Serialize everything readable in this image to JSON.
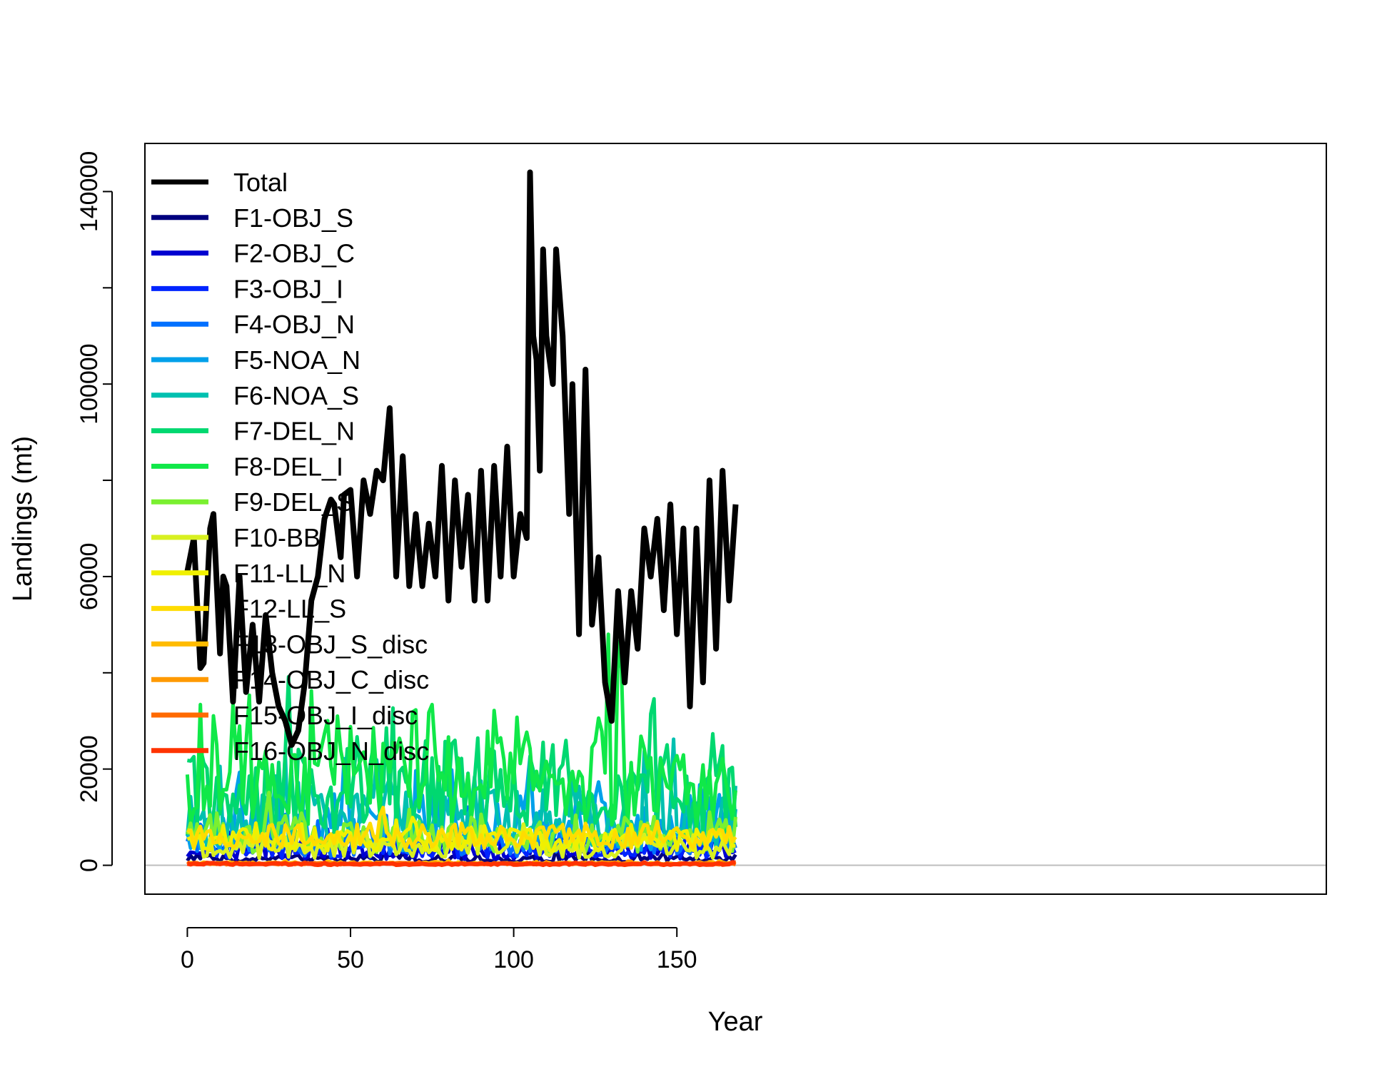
{
  "chart_data": {
    "type": "line",
    "title": "",
    "xlabel": "Year",
    "ylabel": "Landings (mt)",
    "xlim": [
      -13,
      349
    ],
    "ylim": [
      -6000,
      150000
    ],
    "xticks": [
      0,
      50,
      100,
      150
    ],
    "yticks": [
      0,
      20000,
      60000,
      100000,
      140000
    ],
    "xtick_labels": [
      "0",
      "50",
      "100",
      "150"
    ],
    "ytick_labels": [
      "0",
      "20000",
      "60000",
      "100000",
      "140000"
    ],
    "grid": false,
    "reference_line": {
      "y": 0,
      "color": "#bebebe"
    },
    "legend_position": "top-left",
    "series": [
      {
        "name": "Total",
        "color": "#000000",
        "x": [
          0,
          2,
          4,
          5,
          7,
          8,
          10,
          11,
          12,
          14,
          16,
          18,
          20,
          22,
          24,
          26,
          28,
          30,
          32,
          34,
          36,
          38,
          40,
          42,
          44,
          45,
          47,
          48,
          50,
          52,
          54,
          56,
          58,
          60,
          62,
          64,
          66,
          68,
          70,
          72,
          74,
          76,
          78,
          80,
          82,
          84,
          86,
          88,
          90,
          92,
          94,
          96,
          98,
          100,
          102,
          104,
          105,
          106,
          107,
          108,
          109,
          110,
          112,
          113,
          115,
          117,
          118,
          120,
          122,
          124,
          126,
          128,
          130,
          132,
          134,
          136,
          138,
          140,
          142,
          144,
          146,
          148,
          150,
          152,
          154,
          156,
          158,
          160,
          162,
          164,
          166,
          168
        ],
        "y": [
          61000,
          68000,
          41000,
          42000,
          70000,
          73000,
          44000,
          60000,
          58000,
          34000,
          60000,
          36000,
          50000,
          34000,
          52000,
          40000,
          33000,
          30000,
          25000,
          28000,
          38000,
          55000,
          60000,
          72000,
          76000,
          75000,
          64000,
          77000,
          78000,
          60000,
          80000,
          73000,
          82000,
          80000,
          95000,
          60000,
          85000,
          58000,
          73000,
          58000,
          71000,
          60000,
          83000,
          55000,
          80000,
          62000,
          77000,
          55000,
          82000,
          55000,
          83000,
          60000,
          87000,
          60000,
          73000,
          68000,
          144000,
          110000,
          105000,
          82000,
          128000,
          110000,
          100000,
          128000,
          110000,
          73000,
          100000,
          48000,
          103000,
          50000,
          64000,
          38000,
          30000,
          57000,
          38000,
          57000,
          45000,
          70000,
          60000,
          72000,
          53000,
          75000,
          48000,
          70000,
          33000,
          70000,
          38000,
          80000,
          45000,
          82000,
          55000,
          75000
        ],
        "width": 8
      },
      {
        "name": "F1-OBJ_S",
        "color": "#00007f",
        "seed": 11,
        "base": 600,
        "amp": 1800,
        "width": 5
      },
      {
        "name": "F2-OBJ_C",
        "color": "#0000d0",
        "seed": 23,
        "base": 1200,
        "amp": 4500,
        "width": 5
      },
      {
        "name": "F3-OBJ_I",
        "color": "#0024ff",
        "seed": 37,
        "base": 1500,
        "amp": 5000,
        "width": 5
      },
      {
        "name": "F4-OBJ_N",
        "color": "#0070ff",
        "seed": 41,
        "base": 1800,
        "amp": 7000,
        "width": 5
      },
      {
        "name": "F5-NOA_N",
        "color": "#00a0ea",
        "seed": 53,
        "base": 3000,
        "amp": 13000,
        "width": 5
      },
      {
        "name": "F6-NOA_S",
        "color": "#00c0b0",
        "seed": 67,
        "base": 3500,
        "amp": 15000,
        "width": 5
      },
      {
        "name": "F7-DEL_N",
        "color": "#00d870",
        "seed": 71,
        "base": 6000,
        "amp": 22000,
        "width": 5
      },
      {
        "name": "F8-DEL_I",
        "color": "#10e848",
        "seed": 83,
        "base": 8000,
        "amp": 26000,
        "width": 5
      },
      {
        "name": "F9-DEL_S",
        "color": "#7af030",
        "seed": 97,
        "base": 2500,
        "amp": 9000,
        "width": 5
      },
      {
        "name": "F10-BB",
        "color": "#d8f020",
        "seed": 101,
        "base": 1500,
        "amp": 5500,
        "width": 5
      },
      {
        "name": "F11-LL_N",
        "color": "#f0f000",
        "seed": 113,
        "base": 3000,
        "amp": 5000,
        "width": 5
      },
      {
        "name": "F12-LL_S",
        "color": "#ffdc00",
        "seed": 127,
        "base": 3500,
        "amp": 5500,
        "width": 5
      },
      {
        "name": "F13-OBJ_S_disc",
        "color": "#ffbb00",
        "seed": 131,
        "base": 200,
        "amp": 600,
        "width": 5
      },
      {
        "name": "F14-OBJ_C_disc",
        "color": "#ff9900",
        "seed": 139,
        "base": 150,
        "amp": 500,
        "width": 5
      },
      {
        "name": "F15-OBJ_I_disc",
        "color": "#ff6a00",
        "seed": 149,
        "base": 100,
        "amp": 500,
        "width": 5
      },
      {
        "name": "F16-OBJ_N_disc",
        "color": "#ff3300",
        "seed": 151,
        "base": 80,
        "amp": 400,
        "width": 6
      }
    ]
  }
}
